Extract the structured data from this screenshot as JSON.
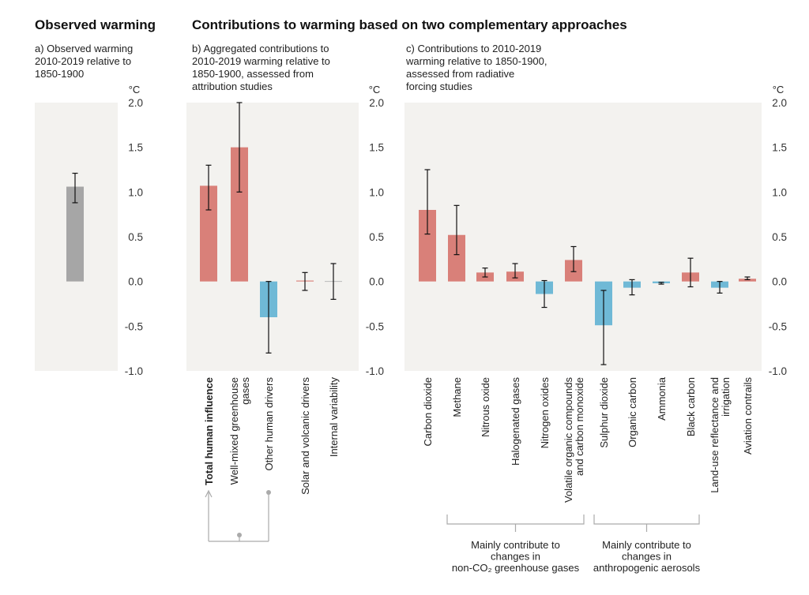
{
  "titles": {
    "left": "Observed warming",
    "right": "Contributions to warming based on two complementary approaches"
  },
  "subtitles": {
    "a": [
      "a) Observed warming",
      "2010-2019 relative to",
      "1850-1900"
    ],
    "b": [
      "b) Aggregated contributions to",
      "2010-2019 warming relative to",
      "1850-1900, assessed from",
      "attribution studies"
    ],
    "c": [
      "c) Contributions to 2010-2019",
      "warming relative to 1850-1900,",
      "assessed from radiative",
      "forcing studies"
    ]
  },
  "colors": {
    "panel_bg": "#f3f2ef",
    "observed": "#a6a6a6",
    "positive": "#d98079",
    "negative": "#6fb9d6",
    "error_bar": "#111111",
    "bracket": "#aaaaaa"
  },
  "brackets": {
    "human": "",
    "nonco2": [
      "Mainly contribute to",
      "changes in",
      "non-CO₂ greenhouse gases"
    ],
    "aerosols": [
      "Mainly contribute to",
      "changes in",
      "anthropogenic aerosols"
    ]
  },
  "chart_data": [
    {
      "type": "bar",
      "panel": "a",
      "unit": "°C",
      "ylim": [
        -1.0,
        2.0
      ],
      "yticks": [
        "2.0",
        "1.5",
        "1.0",
        "0.5",
        "0.0",
        "-0.5",
        "-1.0"
      ],
      "categories": [
        ""
      ],
      "values": [
        1.06
      ],
      "err_low": [
        0.88
      ],
      "err_high": [
        1.21
      ]
    },
    {
      "type": "bar",
      "panel": "b",
      "unit": "°C",
      "ylim": [
        -1.0,
        2.0
      ],
      "yticks": [
        "2.0",
        "1.5",
        "1.0",
        "0.5",
        "0.0",
        "-0.5",
        "-1.0"
      ],
      "categories": [
        "Total human influence",
        "Well-mixed greenhouse gases",
        "Other human drivers",
        "Solar and volcanic drivers",
        "Internal variability"
      ],
      "values": [
        1.07,
        1.5,
        -0.4,
        0.01,
        0.0
      ],
      "err_low": [
        0.8,
        1.0,
        -0.8,
        -0.1,
        -0.2
      ],
      "err_high": [
        1.3,
        2.0,
        0.0,
        0.1,
        0.2
      ]
    },
    {
      "type": "bar",
      "panel": "c",
      "unit": "°C",
      "ylim": [
        -1.0,
        2.0
      ],
      "yticks": [
        "2.0",
        "1.5",
        "1.0",
        "0.5",
        "0.0",
        "-0.5",
        "-1.0"
      ],
      "categories": [
        "Carbon dioxide",
        "Methane",
        "Nitrous oxide",
        "Halogenated gases",
        "Nitrogen oxides",
        "Volatile organic compounds and carbon monoxide",
        "Sulphur dioxide",
        "Organic carbon",
        "Ammonia",
        "Black carbon",
        "Land-use reflectance and irrigation",
        "Aviation contrails"
      ],
      "values": [
        0.8,
        0.52,
        0.1,
        0.11,
        -0.14,
        0.24,
        -0.49,
        -0.07,
        -0.02,
        0.1,
        -0.07,
        0.03
      ],
      "err_low": [
        0.53,
        0.3,
        0.05,
        0.04,
        -0.29,
        0.11,
        -0.93,
        -0.15,
        -0.03,
        -0.06,
        -0.13,
        0.02
      ],
      "err_high": [
        1.25,
        0.85,
        0.15,
        0.2,
        0.01,
        0.39,
        -0.1,
        0.02,
        -0.01,
        0.26,
        0.0,
        0.05
      ]
    }
  ]
}
